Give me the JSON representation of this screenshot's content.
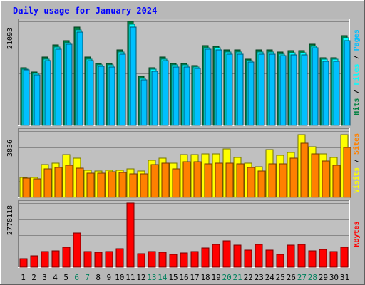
{
  "chart_data": [
    {
      "type": "bar",
      "title": "Daily usage for January 2024",
      "panel": "hits_files_pages",
      "x": [
        1,
        2,
        3,
        4,
        5,
        6,
        7,
        8,
        9,
        10,
        11,
        12,
        13,
        14,
        15,
        16,
        17,
        18,
        19,
        20,
        21,
        22,
        23,
        24,
        25,
        26,
        27,
        28,
        29,
        30,
        31
      ],
      "weekend_days": [
        6,
        7,
        13,
        14,
        20,
        21,
        27,
        28
      ],
      "ytick_label": "21093",
      "ymax": 21093,
      "side_label": [
        "Pages",
        "Files",
        "Hits"
      ],
      "series": [
        {
          "name": "Hits",
          "color": "#008040",
          "values": [
            11700,
            10800,
            13900,
            16300,
            17200,
            19900,
            13900,
            12600,
            12600,
            15300,
            21100,
            9900,
            11700,
            13900,
            12600,
            12600,
            12200,
            16200,
            16100,
            15300,
            15300,
            13500,
            15300,
            15300,
            14900,
            15100,
            15100,
            16500,
            13700,
            13700,
            18200
          ]
        },
        {
          "name": "Files",
          "color": "#00ffff",
          "values": [
            11400,
            10500,
            13500,
            15900,
            16800,
            19400,
            13500,
            12300,
            12300,
            14900,
            20500,
            9600,
            11400,
            13500,
            12300,
            12300,
            11900,
            15800,
            15700,
            14900,
            14900,
            13200,
            14900,
            14900,
            14500,
            14700,
            14700,
            16100,
            13400,
            13400,
            17700
          ]
        },
        {
          "name": "Pages",
          "color": "#00c0ff",
          "values": [
            11200,
            10200,
            13100,
            15500,
            16400,
            18900,
            13100,
            12000,
            11900,
            14500,
            20000,
            9200,
            11000,
            13100,
            11900,
            11900,
            11500,
            15400,
            15300,
            14500,
            14500,
            12800,
            14500,
            14500,
            14100,
            14300,
            14300,
            15700,
            13000,
            13000,
            17200
          ]
        }
      ]
    },
    {
      "type": "bar",
      "panel": "visits_sites",
      "x": [
        1,
        2,
        3,
        4,
        5,
        6,
        7,
        8,
        9,
        10,
        11,
        12,
        13,
        14,
        15,
        16,
        17,
        18,
        19,
        20,
        21,
        22,
        23,
        24,
        25,
        26,
        27,
        28,
        29,
        30,
        31
      ],
      "ytick_label": "3836",
      "ymax": 3836,
      "side_label": [
        "Sites",
        "Visits"
      ],
      "series": [
        {
          "name": "Visits",
          "color": "#ffff00",
          "values": [
            1150,
            1150,
            1880,
            1970,
            2480,
            2280,
            1580,
            1530,
            1580,
            1580,
            1670,
            1530,
            2150,
            2280,
            2000,
            2480,
            2480,
            2530,
            2530,
            2800,
            2290,
            2000,
            1780,
            2750,
            2420,
            2600,
            3640,
            2940,
            2530,
            2330,
            3640
          ]
        },
        {
          "name": "Sites",
          "color": "#ff8000",
          "values": [
            1100,
            1080,
            1630,
            1730,
            1860,
            1680,
            1420,
            1410,
            1490,
            1450,
            1360,
            1380,
            1910,
            1990,
            1630,
            2080,
            2060,
            1930,
            1990,
            1990,
            1950,
            1730,
            1520,
            1950,
            1920,
            2250,
            3150,
            2500,
            2110,
            1860,
            2870
          ]
        }
      ]
    },
    {
      "type": "bar",
      "panel": "kbytes",
      "x": [
        1,
        2,
        3,
        4,
        5,
        6,
        7,
        8,
        9,
        10,
        11,
        12,
        13,
        14,
        15,
        16,
        17,
        18,
        19,
        20,
        21,
        22,
        23,
        24,
        25,
        26,
        27,
        28,
        29,
        30,
        31
      ],
      "ytick_label": "2778118",
      "ymax": 2778118,
      "side_label": [
        "KBytes"
      ],
      "series": [
        {
          "name": "KBytes",
          "color": "#ff0000",
          "values": [
            370000,
            500000,
            690000,
            720000,
            870000,
            1470000,
            680000,
            640000,
            690000,
            790000,
            2790000,
            580000,
            680000,
            650000,
            560000,
            620000,
            670000,
            840000,
            980000,
            1140000,
            960000,
            730000,
            990000,
            730000,
            560000,
            960000,
            1000000,
            710000,
            780000,
            670000,
            870000
          ]
        }
      ]
    }
  ],
  "colors": {
    "background": "#b8b8b8",
    "plot_bg": "#c0c0c0",
    "title": "#0000ff",
    "weekday_label": "#000000",
    "weekend_label": "#00805c",
    "gridline": "#888888"
  }
}
